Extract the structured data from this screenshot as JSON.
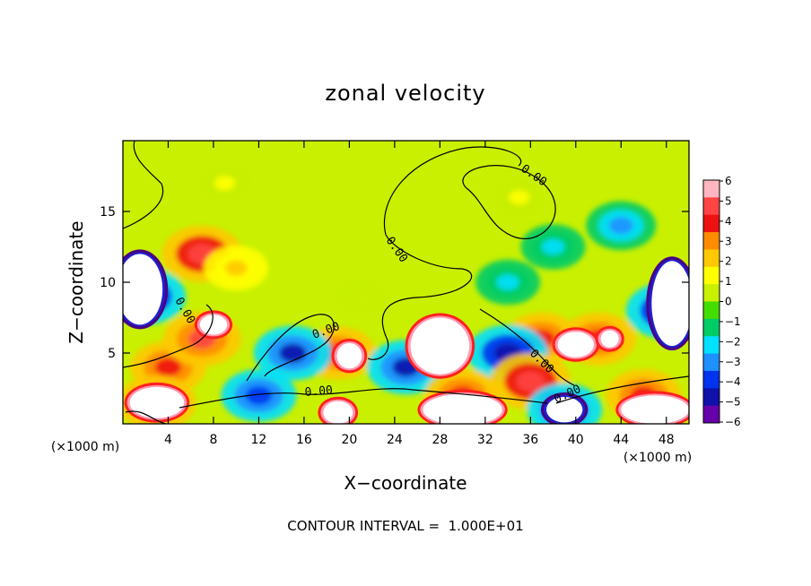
{
  "chart_data": {
    "type": "heatmap",
    "title": "zonal velocity",
    "xlabel": "X−coordinate",
    "ylabel": "Z−coordinate",
    "x_unit_left": "(×1000 m)",
    "x_unit_right": "(×1000 m)",
    "footer": "CONTOUR INTERVAL =  1.000E+01",
    "xlim": [
      0,
      50
    ],
    "ylim": [
      0,
      20
    ],
    "x_ticks": [
      4,
      8,
      12,
      16,
      20,
      24,
      28,
      32,
      36,
      40,
      44,
      48
    ],
    "y_ticks": [
      5,
      10,
      15
    ],
    "colorbar": {
      "ticks": [
        "6",
        "5",
        "4",
        "3",
        "2",
        "1",
        "0",
        "−1",
        "−2",
        "−3",
        "−4",
        "−5",
        "−6"
      ],
      "range": [
        -6,
        6
      ],
      "colors": [
        "#ffb6c1",
        "#ff4444",
        "#ee1111",
        "#ff8c00",
        "#ffc800",
        "#ffff00",
        "#c8f000",
        "#44dd00",
        "#00cc66",
        "#00e0ff",
        "#1e90ff",
        "#0033ee",
        "#1010aa",
        "#6600aa"
      ]
    },
    "contour_labels": [
      "0.00",
      "0.00",
      "0.00",
      "0.00",
      "0.00",
      "0.00",
      "0.00"
    ],
    "features": [
      {
        "x": 7,
        "z": 12,
        "value": 5
      },
      {
        "x": 10,
        "z": 11,
        "value": 2
      },
      {
        "x": 4,
        "z": 4,
        "value": 4
      },
      {
        "x": 7,
        "z": 6,
        "value": 4.5
      },
      {
        "x": 19,
        "z": 5,
        "value": 4
      },
      {
        "x": 37,
        "z": 6,
        "value": 4
      },
      {
        "x": 42,
        "z": 6,
        "value": 4
      },
      {
        "x": 44,
        "z": 14,
        "value": -3
      },
      {
        "x": 38,
        "z": 12.5,
        "value": -2
      },
      {
        "x": 34,
        "z": 10,
        "value": -2
      },
      {
        "x": 15,
        "z": 5,
        "value": -4.5
      },
      {
        "x": 25,
        "z": 4,
        "value": -4.5
      },
      {
        "x": 34,
        "z": 5,
        "value": -5
      },
      {
        "x": 30,
        "z": 2,
        "value": 4
      },
      {
        "x": 36,
        "z": 3,
        "value": 5
      },
      {
        "x": 3,
        "z": 1.5,
        "value": 4.5
      },
      {
        "x": 12,
        "z": 2,
        "value": -4
      },
      {
        "x": 46,
        "z": 2,
        "value": 4
      },
      {
        "x": 2,
        "z": 9,
        "value": -5
      },
      {
        "x": 48,
        "z": 8,
        "value": -5
      },
      {
        "x": 35,
        "z": 16,
        "value": 1
      },
      {
        "x": 9,
        "z": 17,
        "value": 1
      },
      {
        "x": 21,
        "z": 9,
        "value": 0.8
      },
      {
        "x": 39,
        "z": 1,
        "value": -4
      }
    ],
    "saturated_regions": [
      {
        "x": 28,
        "z": 5.5,
        "rx": 2.6,
        "rz": 2.0,
        "sign": 1
      },
      {
        "x": 8,
        "z": 7,
        "rx": 1.2,
        "rz": 0.7,
        "sign": 1
      },
      {
        "x": 20,
        "z": 4.8,
        "rx": 1.1,
        "rz": 0.9,
        "sign": 1
      },
      {
        "x": 40,
        "z": 5.6,
        "rx": 1.6,
        "rz": 0.9,
        "sign": 1
      },
      {
        "x": 43,
        "z": 6,
        "rx": 0.8,
        "rz": 0.6,
        "sign": 1
      },
      {
        "x": 19,
        "z": 0.8,
        "rx": 1.3,
        "rz": 0.8,
        "sign": 1
      },
      {
        "x": 30,
        "z": 1.0,
        "rx": 3.5,
        "rz": 1.1,
        "sign": 1
      },
      {
        "x": 39,
        "z": 1.0,
        "rx": 1.6,
        "rz": 0.9,
        "sign": -1
      },
      {
        "x": 47,
        "z": 1.0,
        "rx": 3.0,
        "rz": 1.0,
        "sign": 1
      },
      {
        "x": 3,
        "z": 1.5,
        "rx": 2.4,
        "rz": 1.1,
        "sign": 1
      },
      {
        "x": 1.5,
        "z": 9.5,
        "rx": 2.0,
        "rz": 2.5,
        "sign": -1
      },
      {
        "x": 48.5,
        "z": 8.5,
        "rx": 1.8,
        "rz": 3.0,
        "sign": -1
      }
    ],
    "background_value": 0.6
  }
}
